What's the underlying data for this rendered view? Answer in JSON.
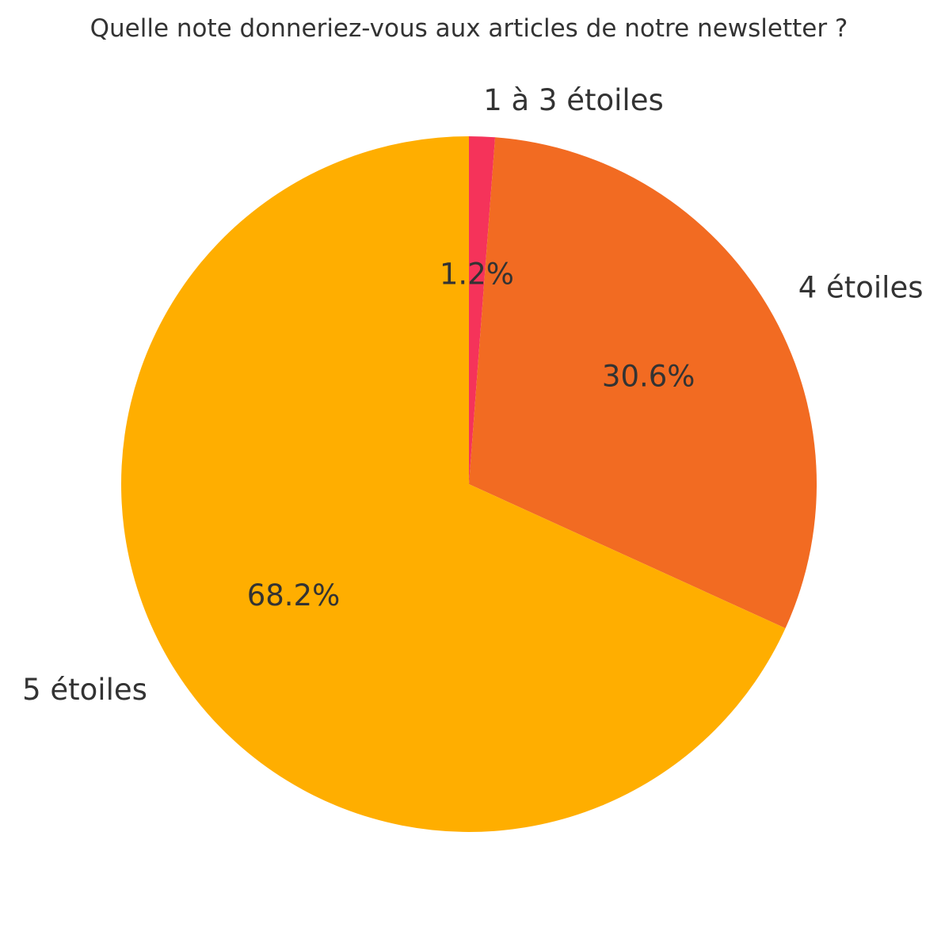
{
  "chart_data": {
    "type": "pie",
    "title": "Quelle note donneriez-vous aux articles de notre newsletter ?",
    "categories": [
      "1 à 3 étoiles",
      "4 étoiles",
      "5 étoiles"
    ],
    "values": [
      1.2,
      30.6,
      68.2
    ],
    "value_labels": [
      "1.2%",
      "30.6%",
      "68.2%"
    ],
    "colors": [
      "#f5335a",
      "#f26b22",
      "#ffae00"
    ],
    "start_angle": "top",
    "direction": "clockwise",
    "legend": "none"
  }
}
